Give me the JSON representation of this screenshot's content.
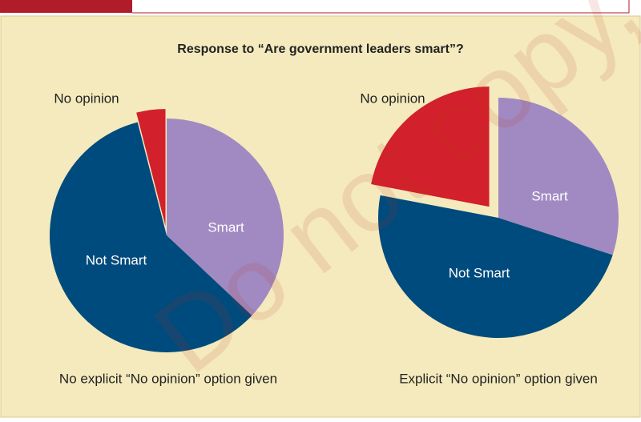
{
  "title": "Response to “Are government leaders smart”?",
  "watermark": "Do not copy,",
  "chart_data": [
    {
      "type": "pie",
      "subtitle": "No explicit “No opinion” option given",
      "categories": [
        "Smart",
        "Not Smart",
        "No opinion"
      ],
      "values": [
        37,
        59,
        4
      ],
      "colors": [
        "#a18ac2",
        "#004b7d",
        "#d2202c"
      ],
      "explode": [
        false,
        false,
        true
      ]
    },
    {
      "type": "pie",
      "subtitle": "Explicit “No opinion” option given",
      "categories": [
        "Smart",
        "Not Smart",
        "No opinion"
      ],
      "values": [
        30,
        48,
        22
      ],
      "colors": [
        "#a18ac2",
        "#004b7d",
        "#d2202c"
      ],
      "explode": [
        false,
        false,
        true
      ]
    }
  ]
}
